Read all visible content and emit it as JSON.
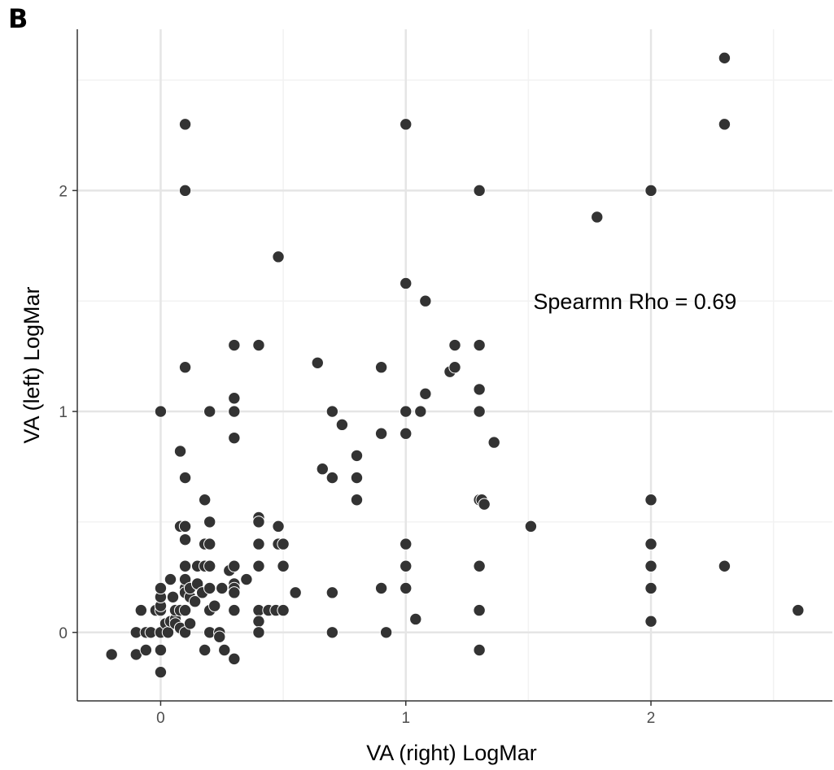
{
  "panel_label": "B",
  "chart_data": {
    "type": "scatter",
    "title": "",
    "xlabel": "VA (right) LogMar",
    "ylabel": "VA (left) LogMar",
    "xlim": [
      -0.34,
      2.74
    ],
    "ylim": [
      -0.31,
      2.73
    ],
    "x_ticks": [
      0,
      1,
      2
    ],
    "y_ticks": [
      0,
      1,
      2
    ],
    "x_minor_ticks": [
      -0.5,
      0.5,
      1.5,
      2.5
    ],
    "y_minor_ticks": [
      0.5,
      1.5,
      2.5
    ],
    "grid": true,
    "point_color": "#333333",
    "annotation": {
      "text": "Spearmn Rho = 0.69",
      "x": 1.52,
      "y": 1.5
    },
    "points": [
      [
        -0.2,
        -0.1
      ],
      [
        -0.1,
        -0.1
      ],
      [
        -0.1,
        0.0
      ],
      [
        -0.08,
        0.1
      ],
      [
        -0.06,
        -0.08
      ],
      [
        -0.06,
        0.0
      ],
      [
        -0.04,
        0.0
      ],
      [
        -0.02,
        0.1
      ],
      [
        0.0,
        0.1
      ],
      [
        0.0,
        0.12
      ],
      [
        0.0,
        0.16
      ],
      [
        0.0,
        0.2
      ],
      [
        0.0,
        0.0
      ],
      [
        0.0,
        -0.08
      ],
      [
        0.0,
        -0.18
      ],
      [
        0.0,
        1.0
      ],
      [
        0.02,
        0.04
      ],
      [
        0.03,
        0.0
      ],
      [
        0.04,
        0.05
      ],
      [
        0.04,
        0.24
      ],
      [
        0.05,
        0.16
      ],
      [
        0.06,
        0.06
      ],
      [
        0.06,
        0.1
      ],
      [
        0.06,
        0.04
      ],
      [
        0.08,
        0.02
      ],
      [
        0.08,
        0.82
      ],
      [
        0.08,
        0.48
      ],
      [
        0.08,
        0.1
      ],
      [
        0.1,
        0.3
      ],
      [
        0.1,
        0.2
      ],
      [
        0.1,
        0.24
      ],
      [
        0.1,
        0.18
      ],
      [
        0.1,
        0.1
      ],
      [
        0.1,
        0.0
      ],
      [
        0.1,
        0.42
      ],
      [
        0.1,
        0.48
      ],
      [
        0.1,
        0.7
      ],
      [
        0.1,
        1.2
      ],
      [
        0.1,
        2.0
      ],
      [
        0.1,
        2.3
      ],
      [
        0.12,
        0.04
      ],
      [
        0.12,
        0.16
      ],
      [
        0.12,
        0.2
      ],
      [
        0.14,
        0.14
      ],
      [
        0.15,
        0.22
      ],
      [
        0.15,
        0.3
      ],
      [
        0.17,
        0.18
      ],
      [
        0.18,
        0.6
      ],
      [
        0.18,
        0.4
      ],
      [
        0.18,
        0.3
      ],
      [
        0.18,
        -0.08
      ],
      [
        0.2,
        0.1
      ],
      [
        0.2,
        0.0
      ],
      [
        0.2,
        0.2
      ],
      [
        0.2,
        0.3
      ],
      [
        0.2,
        0.4
      ],
      [
        0.2,
        0.5
      ],
      [
        0.2,
        1.0
      ],
      [
        0.22,
        0.12
      ],
      [
        0.24,
        0.0
      ],
      [
        0.24,
        -0.02
      ],
      [
        0.25,
        0.2
      ],
      [
        0.26,
        -0.08
      ],
      [
        0.28,
        0.28
      ],
      [
        0.3,
        0.3
      ],
      [
        0.3,
        0.22
      ],
      [
        0.3,
        0.2
      ],
      [
        0.3,
        0.18
      ],
      [
        0.3,
        0.1
      ],
      [
        0.3,
        -0.12
      ],
      [
        0.3,
        0.88
      ],
      [
        0.3,
        1.0
      ],
      [
        0.3,
        1.06
      ],
      [
        0.3,
        1.3
      ],
      [
        0.35,
        0.24
      ],
      [
        0.4,
        0.52
      ],
      [
        0.4,
        0.5
      ],
      [
        0.4,
        0.4
      ],
      [
        0.4,
        0.3
      ],
      [
        0.4,
        0.1
      ],
      [
        0.4,
        0.05
      ],
      [
        0.4,
        0.0
      ],
      [
        0.4,
        1.3
      ],
      [
        0.44,
        0.1
      ],
      [
        0.47,
        0.1
      ],
      [
        0.48,
        0.48
      ],
      [
        0.48,
        0.4
      ],
      [
        0.48,
        1.7
      ],
      [
        0.5,
        0.4
      ],
      [
        0.5,
        0.3
      ],
      [
        0.5,
        0.1
      ],
      [
        0.55,
        0.18
      ],
      [
        0.64,
        1.22
      ],
      [
        0.66,
        0.74
      ],
      [
        0.7,
        0.7
      ],
      [
        0.7,
        0.18
      ],
      [
        0.7,
        0.0
      ],
      [
        0.7,
        1.0
      ],
      [
        0.74,
        0.94
      ],
      [
        0.8,
        0.8
      ],
      [
        0.8,
        0.7
      ],
      [
        0.8,
        0.6
      ],
      [
        0.9,
        1.2
      ],
      [
        0.9,
        0.9
      ],
      [
        0.9,
        0.2
      ],
      [
        0.92,
        0.0
      ],
      [
        1.0,
        1.58
      ],
      [
        1.0,
        1.0
      ],
      [
        1.0,
        0.9
      ],
      [
        1.0,
        0.4
      ],
      [
        1.0,
        0.3
      ],
      [
        1.0,
        0.2
      ],
      [
        1.0,
        2.3
      ],
      [
        1.04,
        0.06
      ],
      [
        1.06,
        1.0
      ],
      [
        1.08,
        1.08
      ],
      [
        1.08,
        1.5
      ],
      [
        1.18,
        1.18
      ],
      [
        1.2,
        1.2
      ],
      [
        1.2,
        1.3
      ],
      [
        1.3,
        2.0
      ],
      [
        1.3,
        1.3
      ],
      [
        1.3,
        1.1
      ],
      [
        1.3,
        1.0
      ],
      [
        1.3,
        0.6
      ],
      [
        1.3,
        0.3
      ],
      [
        1.3,
        0.1
      ],
      [
        1.3,
        -0.08
      ],
      [
        1.31,
        0.6
      ],
      [
        1.32,
        0.58
      ],
      [
        1.36,
        0.86
      ],
      [
        1.51,
        0.48
      ],
      [
        1.78,
        1.88
      ],
      [
        2.0,
        2.0
      ],
      [
        2.0,
        0.6
      ],
      [
        2.0,
        0.4
      ],
      [
        2.0,
        0.3
      ],
      [
        2.0,
        0.2
      ],
      [
        2.0,
        0.05
      ],
      [
        2.3,
        2.6
      ],
      [
        2.3,
        2.3
      ],
      [
        2.3,
        0.3
      ],
      [
        2.6,
        0.1
      ]
    ]
  }
}
